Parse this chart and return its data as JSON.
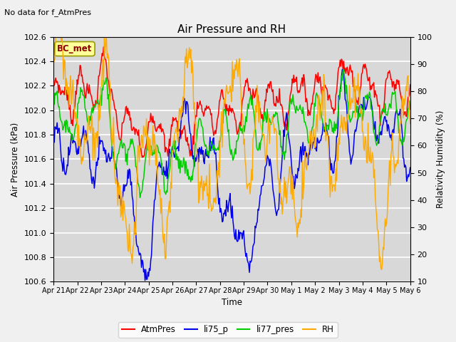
{
  "title": "Air Pressure and RH",
  "subtitle": "No data for f_AtmPres",
  "xlabel": "Time",
  "ylabel_left": "Air Pressure (kPa)",
  "ylabel_right": "Relativity Humidity (%)",
  "ylim_left": [
    100.6,
    102.6
  ],
  "ylim_right": [
    10,
    100
  ],
  "xtick_labels": [
    "Apr 21",
    "Apr 22",
    "Apr 23",
    "Apr 24",
    "Apr 25",
    "Apr 26",
    "Apr 27",
    "Apr 28",
    "Apr 29",
    "Apr 30",
    "May 1",
    "May 2",
    "May 3",
    "May 4",
    "May 5",
    "May 6"
  ],
  "ytick_left": [
    100.6,
    100.8,
    101.0,
    101.2,
    101.4,
    101.6,
    101.8,
    102.0,
    102.2,
    102.4,
    102.6
  ],
  "ytick_right": [
    10,
    20,
    30,
    40,
    50,
    60,
    70,
    80,
    90,
    100
  ],
  "legend_labels": [
    "AtmPres",
    "li75_p",
    "li77_pres",
    "RH"
  ],
  "legend_colors": [
    "#ff0000",
    "#0000ee",
    "#00cc00",
    "#ffaa00"
  ],
  "annotation_text": "BC_met",
  "annotation_color": "#8b0000",
  "annotation_bg": "#ffff99",
  "fig_bg": "#f0f0f0",
  "plot_bg": "#d8d8d8",
  "grid_color": "#ffffff",
  "n_points": 500
}
